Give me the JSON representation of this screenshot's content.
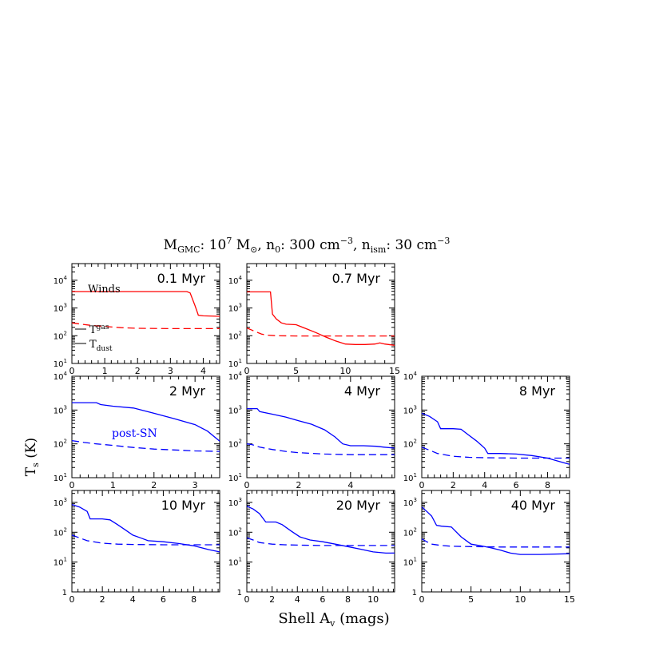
{
  "figure": {
    "title_parts": {
      "m": "M",
      "m_sub": "GMC",
      "m_rest": ": 10",
      "m_exp": "7",
      "msun": " M",
      "msun_sub": "⊙",
      "n0": ", n",
      "n0_sub": "0",
      "n0_rest": ": 300 cm",
      "n0_exp": "−3",
      "nism": ", n",
      "nism_sub": "ism",
      "nism_rest": ": 30 cm",
      "nism_exp": "−3"
    },
    "ylabel": "T",
    "ylabel_sub": "s",
    "ylabel_rest": " (K)",
    "xlabel": "Shell A",
    "xlabel_sub": "v",
    "xlabel_rest": " (mags)",
    "colors": {
      "winds": "#ff0000",
      "postsn": "#0000ff",
      "axis": "#000000"
    }
  },
  "chart_data": [
    {
      "type": "line",
      "label": "0.1 Myr",
      "annotation": "Winds",
      "color": "#ff0000",
      "xlim": [
        0,
        4.5
      ],
      "ylim_log10": [
        1,
        4.6
      ],
      "xticks": [
        0,
        1,
        2,
        3,
        4
      ],
      "yticks": [
        1,
        2,
        3,
        4
      ],
      "yscale": "log",
      "legend": [
        {
          "style": "solid",
          "text": "T",
          "sub": "gas"
        },
        {
          "style": "dashed",
          "text": "T",
          "sub": "dust"
        }
      ],
      "series": [
        {
          "style": "solid",
          "x": [
            0,
            0.5,
            1,
            2,
            3,
            3.5,
            3.6,
            3.75,
            3.85,
            4,
            4.5
          ],
          "y": [
            3900,
            3900,
            3900,
            3900,
            3900,
            3900,
            3500,
            1200,
            550,
            520,
            500
          ]
        },
        {
          "style": "dashed",
          "x": [
            0,
            0.3,
            0.6,
            1,
            1.5,
            2,
            3,
            4,
            4.5
          ],
          "y": [
            290,
            260,
            235,
            215,
            195,
            185,
            180,
            180,
            180
          ]
        }
      ]
    },
    {
      "type": "line",
      "label": "0.7 Myr",
      "color": "#ff0000",
      "xlim": [
        0,
        15
      ],
      "ylim_log10": [
        1,
        4.6
      ],
      "xticks": [
        0,
        5,
        10,
        15
      ],
      "yticks": [
        1,
        2,
        3,
        4
      ],
      "yscale": "log",
      "series": [
        {
          "style": "solid",
          "x": [
            0,
            1,
            2,
            2.4,
            2.6,
            3,
            3.5,
            4,
            5,
            6,
            7,
            8,
            9,
            10,
            11,
            12,
            13,
            13.5,
            14,
            15
          ],
          "y": [
            3800,
            3800,
            3800,
            3800,
            600,
            400,
            290,
            260,
            250,
            180,
            130,
            90,
            65,
            50,
            48,
            48,
            50,
            55,
            50,
            45
          ]
        },
        {
          "style": "dashed",
          "x": [
            0,
            0.5,
            1,
            1.5,
            2,
            3,
            5,
            8,
            10,
            15
          ],
          "y": [
            190,
            160,
            135,
            115,
            105,
            100,
            98,
            98,
            98,
            98
          ]
        }
      ]
    },
    {
      "type": "line",
      "label": "2 Myr",
      "annotation": "post-SN",
      "color": "#0000ff",
      "xlim": [
        0,
        3.6
      ],
      "ylim_log10": [
        1,
        4
      ],
      "xticks": [
        0,
        1,
        2,
        3
      ],
      "yticks": [
        1,
        2,
        3,
        4
      ],
      "yscale": "log",
      "series": [
        {
          "style": "solid",
          "x": [
            0,
            0.6,
            0.7,
            1,
            1.5,
            2,
            2.5,
            3,
            3.3,
            3.6
          ],
          "y": [
            1650,
            1650,
            1450,
            1300,
            1150,
            800,
            550,
            370,
            240,
            120
          ]
        },
        {
          "style": "dashed",
          "x": [
            0,
            0.3,
            0.6,
            1,
            1.5,
            2,
            2.5,
            3,
            3.6
          ],
          "y": [
            125,
            110,
            100,
            90,
            78,
            70,
            66,
            62,
            60
          ]
        }
      ]
    },
    {
      "type": "line",
      "label": "4 Myr",
      "color": "#0000ff",
      "xlim": [
        0,
        5.7
      ],
      "ylim_log10": [
        1,
        4
      ],
      "xticks": [
        0,
        2,
        4
      ],
      "yticks": [
        1,
        2,
        3,
        4
      ],
      "yscale": "log",
      "series": [
        {
          "style": "solid",
          "x": [
            0,
            0.4,
            0.5,
            1,
            1.5,
            2,
            2.5,
            3,
            3.4,
            3.7,
            4,
            4.5,
            5,
            5.3,
            5.7
          ],
          "y": [
            1100,
            1100,
            900,
            750,
            620,
            480,
            380,
            260,
            160,
            100,
            88,
            88,
            85,
            80,
            75
          ]
        },
        {
          "style": "dashed",
          "x": [
            0,
            0.2,
            0.5,
            1,
            1.5,
            2,
            3,
            4,
            5,
            5.7
          ],
          "y": [
            100,
            95,
            80,
            68,
            60,
            55,
            50,
            48,
            48,
            48
          ]
        }
      ]
    },
    {
      "type": "line",
      "label": "8 Myr",
      "color": "#0000ff",
      "xlim": [
        0,
        9.4
      ],
      "ylim_log10": [
        1,
        4
      ],
      "xticks": [
        0,
        2,
        4,
        6,
        8
      ],
      "yticks": [
        1,
        2,
        3,
        4
      ],
      "yscale": "log",
      "series": [
        {
          "style": "solid",
          "x": [
            0,
            0.5,
            1,
            1.2,
            2,
            2.5,
            3,
            3.5,
            4,
            4.2,
            5,
            6,
            7,
            8,
            9,
            9.4
          ],
          "y": [
            800,
            650,
            450,
            280,
            280,
            270,
            180,
            120,
            75,
            52,
            52,
            50,
            45,
            38,
            28,
            25
          ]
        },
        {
          "style": "dashed",
          "x": [
            0,
            0.5,
            1,
            2,
            3,
            4,
            6,
            8,
            9.4
          ],
          "y": [
            80,
            65,
            52,
            43,
            40,
            39,
            38,
            38,
            38
          ]
        }
      ]
    },
    {
      "type": "line",
      "label": "10 Myr",
      "color": "#0000ff",
      "xlim": [
        0,
        9.7
      ],
      "ylim_log10": [
        0,
        3.4
      ],
      "xticks": [
        0,
        2,
        4,
        6,
        8
      ],
      "yticks": [
        0,
        1,
        2,
        3
      ],
      "yscale": "log",
      "series": [
        {
          "style": "solid",
          "x": [
            0,
            0.5,
            1,
            1.2,
            2,
            2.5,
            3,
            3.5,
            4,
            4.5,
            5,
            6,
            7,
            8,
            9,
            9.7
          ],
          "y": [
            850,
            700,
            500,
            280,
            280,
            260,
            180,
            120,
            80,
            65,
            52,
            48,
            42,
            35,
            26,
            22
          ]
        },
        {
          "style": "dashed",
          "x": [
            0,
            0.5,
            1,
            2,
            3,
            4,
            6,
            8,
            9.7
          ],
          "y": [
            80,
            65,
            52,
            43,
            40,
            39,
            38,
            38,
            38
          ]
        }
      ]
    },
    {
      "type": "line",
      "label": "20 Myr",
      "color": "#0000ff",
      "xlim": [
        0,
        11.7
      ],
      "ylim_log10": [
        0,
        3.4
      ],
      "xticks": [
        0,
        2,
        4,
        6,
        8,
        10
      ],
      "yticks": [
        0,
        1,
        2,
        3
      ],
      "yscale": "log",
      "series": [
        {
          "style": "solid",
          "x": [
            0,
            0.5,
            1,
            1.5,
            2.3,
            2.8,
            3.5,
            4.2,
            5,
            6,
            7,
            8,
            9,
            10,
            11,
            11.7
          ],
          "y": [
            750,
            600,
            420,
            220,
            220,
            180,
            110,
            70,
            55,
            48,
            40,
            33,
            27,
            22,
            20,
            20
          ]
        },
        {
          "style": "dashed",
          "x": [
            0,
            0.5,
            1,
            2,
            3,
            4,
            6,
            8,
            10,
            11.7
          ],
          "y": [
            65,
            55,
            45,
            40,
            38,
            37,
            36,
            36,
            36,
            36
          ]
        }
      ]
    },
    {
      "type": "line",
      "label": "40 Myr",
      "color": "#0000ff",
      "xlim": [
        0,
        15
      ],
      "ylim_log10": [
        0,
        3.4
      ],
      "xticks": [
        0,
        5,
        10,
        15
      ],
      "yticks": [
        0,
        1,
        2,
        3
      ],
      "yscale": "log",
      "series": [
        {
          "style": "solid",
          "x": [
            0,
            0.5,
            1,
            1.5,
            2,
            3,
            4,
            5,
            6,
            7,
            8,
            9,
            10,
            12,
            15
          ],
          "y": [
            700,
            500,
            350,
            170,
            160,
            150,
            70,
            40,
            35,
            30,
            25,
            20,
            18,
            18,
            19
          ]
        },
        {
          "style": "dashed",
          "x": [
            0,
            0.5,
            1,
            2,
            3,
            5,
            8,
            10,
            15
          ],
          "y": [
            60,
            48,
            40,
            36,
            34,
            33,
            32,
            32,
            32
          ]
        }
      ]
    }
  ]
}
